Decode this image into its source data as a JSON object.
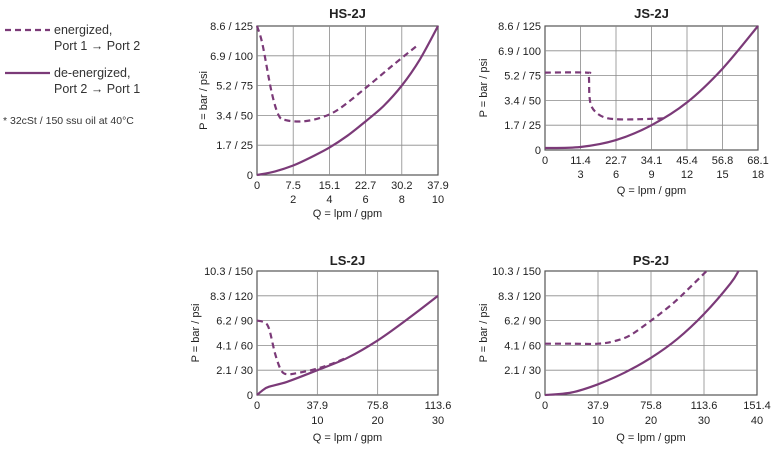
{
  "legend": {
    "energized_line1": "energized,",
    "energized_line2": "Port 1  →  Port 2",
    "deenergized_line1": "de-energized,",
    "deenergized_line2": "Port 2  →  Port 1",
    "note": "* 32cSt / 150 ssu oil at 40°C"
  },
  "colors": {
    "curve": "#7b3a78",
    "grid": "#8a8a8a",
    "frame": "#555555"
  },
  "chart_data": [
    {
      "type": "line",
      "title": "HS-2J",
      "xlabel": "Q = lpm / gpm",
      "ylabel": "P = bar / psi",
      "xlim_gpm": [
        0,
        10
      ],
      "ylim_psi": [
        0,
        125
      ],
      "grid": true,
      "x_ticks_lpm": [
        "0",
        "7.5",
        "15.1",
        "22.7",
        "30.2",
        "37.9"
      ],
      "x_ticks_gpm": [
        "",
        "2",
        "4",
        "6",
        "8",
        "10"
      ],
      "y_ticks": [
        "0",
        "1.7 / 25",
        "3.4 / 50",
        "5.2 / 75",
        "6.9 / 100",
        "8.6 / 125"
      ],
      "series": [
        {
          "name": "energized, Port 1 → Port 2",
          "style": "dashed",
          "x": [
            0,
            0.3,
            0.8,
            1.2,
            1.6,
            2.5,
            3.5,
            4.5,
            6,
            7.5,
            8.8
          ],
          "y": [
            125,
            110,
            70,
            50,
            46,
            45,
            48,
            55,
            73,
            92,
            108
          ]
        },
        {
          "name": "de-energized, Port 2 → Port 1",
          "style": "solid",
          "x": [
            0,
            1,
            2,
            3,
            4,
            5,
            6,
            7,
            8,
            9,
            10
          ],
          "y": [
            0,
            3,
            8,
            15,
            23,
            33,
            45,
            58,
            75,
            97,
            125
          ]
        }
      ]
    },
    {
      "type": "line",
      "title": "JS-2J",
      "xlabel": "Q = lpm / gpm",
      "ylabel": "P = bar / psi",
      "xlim_gpm": [
        0,
        18
      ],
      "ylim_psi": [
        0,
        125
      ],
      "grid": true,
      "x_ticks_lpm": [
        "0",
        "11.4",
        "22.7",
        "34.1",
        "45.4",
        "56.8",
        "68.1"
      ],
      "x_ticks_gpm": [
        "",
        "3",
        "6",
        "9",
        "12",
        "15",
        "18"
      ],
      "y_ticks": [
        "0",
        "1.7 / 25",
        "3.4 / 50",
        "5.2 / 75",
        "6.9 / 100",
        "8.6 / 125"
      ],
      "series": [
        {
          "name": "energized, Port 1 → Port 2",
          "style": "dashed",
          "x": [
            0,
            3.5,
            3.7,
            3.75,
            3.9,
            4.3,
            5,
            6,
            8,
            10
          ],
          "y": [
            78,
            78,
            75,
            55,
            45,
            38,
            33,
            31,
            31,
            32
          ]
        },
        {
          "name": "de-energized, Port 2 → Port 1",
          "style": "solid",
          "x": [
            0,
            3,
            6,
            9,
            12,
            15,
            18
          ],
          "y": [
            2,
            3,
            10,
            25,
            48,
            82,
            125
          ]
        }
      ]
    },
    {
      "type": "line",
      "title": "LS-2J",
      "xlabel": "Q = lpm / gpm",
      "ylabel": "P = bar / psi",
      "xlim_gpm": [
        0,
        30
      ],
      "ylim_psi": [
        0,
        150
      ],
      "grid": true,
      "x_ticks_lpm": [
        "0",
        "37.9",
        "75.8",
        "113.6"
      ],
      "x_ticks_gpm": [
        "",
        "10",
        "20",
        "30"
      ],
      "y_ticks": [
        "0",
        "2.1 / 30",
        "4.1 / 60",
        "6.2 / 90",
        "8.3 / 120",
        "10.3 / 150"
      ],
      "series": [
        {
          "name": "energized, Port 1 → Port 2",
          "style": "dashed",
          "x": [
            0,
            1.2,
            2,
            3,
            4,
            5,
            7,
            10,
            12.5,
            14.5
          ],
          "y": [
            90,
            88,
            80,
            50,
            30,
            25,
            27,
            32,
            38,
            44
          ]
        },
        {
          "name": "de-energized, Port 2 → Port 1",
          "style": "solid",
          "x": [
            0,
            1,
            2,
            5,
            10,
            15,
            20,
            25,
            30
          ],
          "y": [
            0,
            6,
            10,
            16,
            30,
            45,
            66,
            92,
            120
          ]
        }
      ]
    },
    {
      "type": "line",
      "title": "PS-2J",
      "xlabel": "Q = lpm / gpm",
      "ylabel": "P = bar / psi",
      "xlim_gpm": [
        0,
        40
      ],
      "ylim_psi": [
        0,
        150
      ],
      "grid": true,
      "x_ticks_lpm": [
        "0",
        "37.9",
        "75.8",
        "113.6",
        "151.4"
      ],
      "x_ticks_gpm": [
        "",
        "10",
        "20",
        "30",
        "40"
      ],
      "y_ticks": [
        "0",
        "2.1 / 30",
        "4.1 / 60",
        "6.2 / 90",
        "8.3 / 120",
        "10.3 / 150"
      ],
      "series": [
        {
          "name": "energized, Port 1 → Port 2",
          "style": "dashed",
          "x": [
            0,
            5,
            10,
            13,
            16,
            20,
            24,
            27,
            30.5
          ],
          "y": [
            62,
            62,
            62,
            65,
            72,
            90,
            110,
            128,
            150
          ]
        },
        {
          "name": "de-energized, Port 2 → Port 1",
          "style": "solid",
          "x": [
            0,
            5,
            10,
            15,
            20,
            25,
            30,
            35,
            36.5
          ],
          "y": [
            0,
            3,
            13,
            27,
            45,
            68,
            98,
            135,
            150
          ]
        }
      ]
    }
  ]
}
